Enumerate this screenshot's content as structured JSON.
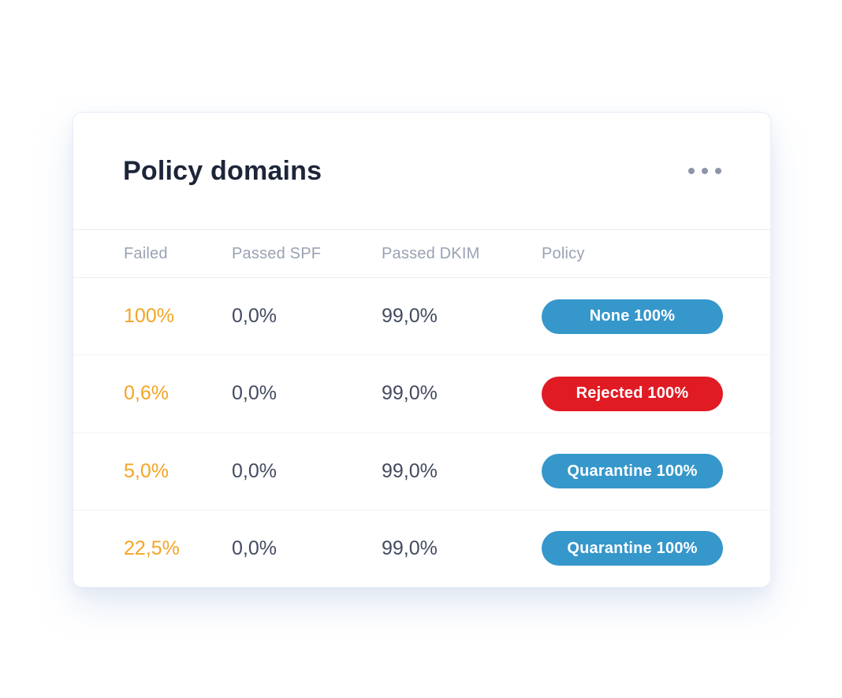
{
  "card": {
    "title": "Policy domains",
    "menu": {
      "icon": "ellipsis-icon"
    }
  },
  "table": {
    "columns": [
      "Failed",
      "Passed SPF",
      "Passed DKIM",
      "Policy"
    ],
    "rows": [
      {
        "failed": "100%",
        "passed_spf": "0,0%",
        "passed_dkim": "99,0%",
        "policy": {
          "label": "None 100%",
          "color": "blue"
        }
      },
      {
        "failed": "0,6%",
        "passed_spf": "0,0%",
        "passed_dkim": "99,0%",
        "policy": {
          "label": "Rejected 100%",
          "color": "red"
        }
      },
      {
        "failed": "5,0%",
        "passed_spf": "0,0%",
        "passed_dkim": "99,0%",
        "policy": {
          "label": "Quarantine 100%",
          "color": "blue"
        }
      },
      {
        "failed": "22,5%",
        "passed_spf": "0,0%",
        "passed_dkim": "99,0%",
        "policy": {
          "label": "Quarantine 100%",
          "color": "blue"
        }
      }
    ]
  },
  "colors": {
    "failed_accent": "#F4A425",
    "badge_blue": "#3697CB",
    "badge_red": "#E01B24",
    "title_text": "#1D2539",
    "header_text": "#99A2B4",
    "cell_text": "#434B60"
  }
}
